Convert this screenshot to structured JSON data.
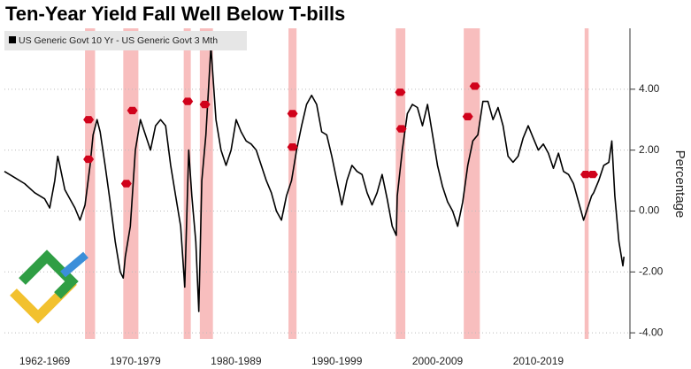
{
  "chart_data": {
    "type": "line",
    "title": "Ten-Year Yield Fall Well Below T-bills",
    "y_label": "Percentage",
    "xlim": [
      1962,
      2024.1
    ],
    "ylim": [
      -4.2,
      6.0
    ],
    "xticks": [
      {
        "value": 1966,
        "label": "1962-1969"
      },
      {
        "value": 1975,
        "label": "1970-1979"
      },
      {
        "value": 1985,
        "label": "1980-1989"
      },
      {
        "value": 1995,
        "label": "1990-1999"
      },
      {
        "value": 2005,
        "label": "2000-2009"
      },
      {
        "value": 2015,
        "label": "2010-2019"
      }
    ],
    "yticks": [
      {
        "value": 4,
        "label": "4.00"
      },
      {
        "value": 2,
        "label": "2.00"
      },
      {
        "value": 0,
        "label": "0.00"
      },
      {
        "value": -2,
        "label": "-2.00"
      },
      {
        "value": -4,
        "label": "-4.00"
      }
    ],
    "grid": true,
    "recession_color": "#f7b3b3",
    "marker_color": "#d0021b",
    "recessions": [
      [
        1970.0,
        1971.0
      ],
      [
        1973.8,
        1975.3
      ],
      [
        1979.8,
        1980.5
      ],
      [
        1981.4,
        1982.7
      ],
      [
        1990.2,
        1991.0
      ],
      [
        2000.85,
        2001.8
      ],
      [
        2007.6,
        2009.2
      ],
      [
        2019.6,
        2020.0
      ]
    ],
    "markers": {
      "x": [
        1970.35,
        1970.35,
        1974.1,
        1974.7,
        1980.2,
        1981.9,
        1990.6,
        1990.6,
        2001.3,
        2001.4,
        2008.0,
        2008.7,
        2019.7,
        2020.4
      ],
      "y": [
        3.0,
        1.7,
        0.9,
        3.3,
        3.6,
        3.5,
        3.2,
        2.1,
        3.9,
        2.7,
        3.1,
        4.1,
        1.2,
        1.2
      ]
    },
    "series": [
      {
        "name": "US Generic Govt 10 Yr - US Generic Govt 3 Mth",
        "color": "#000000",
        "x": [
          1962,
          1963,
          1964,
          1965,
          1966,
          1966.5,
          1967,
          1967.3,
          1967.5,
          1968,
          1968.5,
          1969,
          1969.5,
          1970,
          1970.5,
          1970.8,
          1971.2,
          1971.5,
          1972,
          1972.5,
          1973,
          1973.5,
          1973.8,
          1974,
          1974.5,
          1975,
          1975.5,
          1976,
          1976.5,
          1977,
          1977.5,
          1978,
          1978.5,
          1979,
          1979.5,
          1979.9,
          1980.3,
          1980.6,
          1981,
          1981.3,
          1981.6,
          1982,
          1982.5,
          1983,
          1983.5,
          1984,
          1984.5,
          1985,
          1985.5,
          1986,
          1986.5,
          1987,
          1987.5,
          1988,
          1988.5,
          1989,
          1989.5,
          1990,
          1990.5,
          1991,
          1991.5,
          1992,
          1992.5,
          1993,
          1993.5,
          1994,
          1994.5,
          1995,
          1995.5,
          1996,
          1996.5,
          1997,
          1997.5,
          1998,
          1998.5,
          1999,
          1999.5,
          2000,
          2000.5,
          2000.9,
          2001,
          2001.5,
          2002,
          2002.5,
          2003,
          2003.5,
          2004,
          2004.5,
          2005,
          2005.5,
          2006,
          2006.5,
          2007,
          2007.5,
          2008,
          2008.5,
          2009,
          2009.5,
          2010,
          2010.5,
          2011,
          2011.5,
          2012,
          2012.5,
          2013,
          2013.5,
          2014,
          2014.5,
          2015,
          2015.5,
          2016,
          2016.5,
          2017,
          2017.5,
          2018,
          2018.5,
          2019,
          2019.5,
          2020,
          2020.3,
          2020.5,
          2021,
          2021.5,
          2022,
          2022.3,
          2022.6,
          2023,
          2023.4,
          2023.5
        ],
        "values": [
          1.3,
          1.1,
          0.9,
          0.6,
          0.4,
          0.1,
          1.0,
          1.8,
          1.5,
          0.7,
          0.4,
          0.1,
          -0.3,
          0.2,
          1.5,
          2.5,
          3.0,
          2.6,
          1.5,
          0.3,
          -1.0,
          -2.0,
          -2.2,
          -1.5,
          -0.5,
          2.0,
          3.0,
          2.5,
          2.0,
          2.8,
          3.0,
          2.8,
          1.5,
          0.5,
          -0.5,
          -2.5,
          2.0,
          0.5,
          -1.0,
          -3.3,
          1.0,
          2.5,
          5.4,
          3.0,
          2.0,
          1.5,
          2.0,
          3.0,
          2.6,
          2.3,
          2.2,
          2.0,
          1.5,
          1.0,
          0.6,
          0.0,
          -0.3,
          0.5,
          1.0,
          2.0,
          2.8,
          3.5,
          3.8,
          3.5,
          2.6,
          2.5,
          1.8,
          1.0,
          0.2,
          1.0,
          1.5,
          1.3,
          1.2,
          0.6,
          0.2,
          0.6,
          1.2,
          0.4,
          -0.5,
          -0.8,
          0.5,
          2.0,
          3.2,
          3.5,
          3.4,
          2.8,
          3.5,
          2.5,
          1.5,
          0.8,
          0.3,
          0.0,
          -0.5,
          0.3,
          1.5,
          2.3,
          2.5,
          3.6,
          3.6,
          3.0,
          3.4,
          2.8,
          1.8,
          1.6,
          1.8,
          2.4,
          2.8,
          2.4,
          2.0,
          2.2,
          1.9,
          1.4,
          1.9,
          1.3,
          1.2,
          0.9,
          0.3,
          -0.3,
          0.2,
          0.5,
          0.6,
          1.0,
          1.5,
          1.6,
          2.3,
          0.5,
          -1.0,
          -1.8,
          -1.5
        ]
      }
    ]
  }
}
